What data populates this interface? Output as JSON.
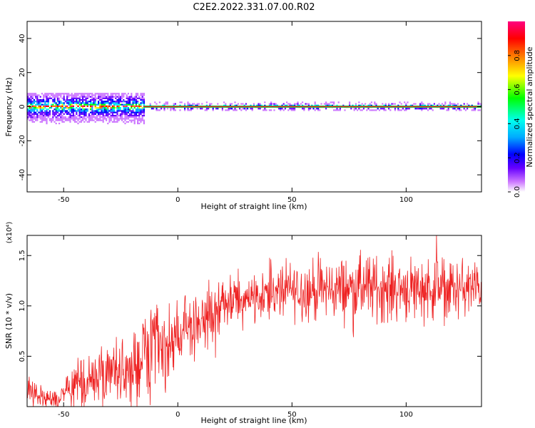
{
  "figure_title": "C2E2.2022.331.07.00.R02",
  "chart_data": [
    {
      "type": "heatmap",
      "xlabel": "Height of straight line (km)",
      "ylabel": "Frequency (Hz)",
      "xlim": [
        -66,
        133
      ],
      "ylim": [
        -50,
        50
      ],
      "xticks": [
        -50,
        0,
        50,
        100
      ],
      "yticks": [
        -40,
        -20,
        0,
        20,
        40
      ],
      "grid": false,
      "colorbar": {
        "label": "Normalized spectral amplitude",
        "range": [
          0,
          1
        ],
        "ticks": [
          "0.0",
          "0.2",
          "0.4",
          "0.6",
          "0.8"
        ],
        "colormap": [
          "#ffffff",
          "#cc77ff",
          "#6600ff",
          "#0000ff",
          "#00aaff",
          "#00ffee",
          "#00ff00",
          "#ffff00",
          "#ff7700",
          "#ff0000",
          "#ff0080"
        ]
      },
      "features": {
        "carrier_line_frequency_hz": 0,
        "broad_region_km": [
          -66,
          -15
        ],
        "broad_region_spread_hz": [
          -20,
          8
        ],
        "narrow_region_km": [
          -15,
          133
        ],
        "narrow_region_spread_hz": [
          -3,
          3
        ]
      }
    },
    {
      "type": "line",
      "xlabel": "Height of straight line (km)",
      "ylabel": "SNR (10 * v/v)",
      "y_multiplier": "(x10⁴)",
      "xlim": [
        -66,
        133
      ],
      "ylim": [
        0,
        1.7
      ],
      "xticks": [
        -50,
        0,
        50,
        100
      ],
      "yticks": [
        0.5,
        1.0,
        1.5
      ],
      "ytick_labels": [
        "0.5",
        "1.0",
        "1.5"
      ],
      "grid": false,
      "series": [
        {
          "color": "#ee2222",
          "envelope_x": [
            -66,
            -60,
            -55,
            -50,
            -45,
            -40,
            -35,
            -30,
            -25,
            -20,
            -15,
            -10,
            -5,
            0,
            5,
            10,
            15,
            20,
            25,
            30,
            40,
            50,
            60,
            70,
            80,
            90,
            100,
            110,
            120,
            133
          ],
          "envelope_mean": [
            0.2,
            0.08,
            0.06,
            0.1,
            0.18,
            0.25,
            0.28,
            0.3,
            0.34,
            0.38,
            0.48,
            0.55,
            0.62,
            0.68,
            0.78,
            0.86,
            0.92,
            0.99,
            1.05,
            1.09,
            1.13,
            1.15,
            1.16,
            1.17,
            1.18,
            1.18,
            1.18,
            1.18,
            1.17,
            1.17
          ],
          "noise_amplitude": [
            0.1,
            0.06,
            0.05,
            0.08,
            0.12,
            0.15,
            0.16,
            0.17,
            0.19,
            0.2,
            0.22,
            0.22,
            0.22,
            0.2,
            0.18,
            0.16,
            0.14,
            0.12,
            0.12,
            0.12,
            0.13,
            0.14,
            0.15,
            0.15,
            0.16,
            0.16,
            0.16,
            0.16,
            0.15,
            0.14
          ]
        }
      ]
    }
  ]
}
